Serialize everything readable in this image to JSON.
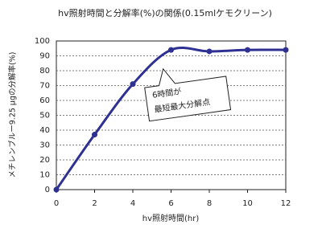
{
  "chart_data": {
    "type": "line",
    "title": "hv照射時間と分解率(%)の関係(0.15mlケモクリーン)",
    "x_label": "hv照射時間(hr)",
    "y_label": "メチレンブルー9.25 μgの分解率(%)",
    "annotation": [
      "6時間が",
      "最短最大分解点"
    ],
    "x": [
      0,
      2,
      4,
      6,
      8,
      10,
      12
    ],
    "series": [
      {
        "name": "分解率",
        "color": "#2e3192",
        "values": [
          0,
          37,
          71,
          94,
          93,
          94,
          94
        ]
      }
    ],
    "xlim": [
      0,
      12
    ],
    "xticks": [
      0,
      2,
      4,
      6,
      8,
      10,
      12
    ],
    "ylim": [
      0,
      100
    ],
    "yticks": [
      0,
      10,
      20,
      30,
      40,
      50,
      60,
      70,
      80,
      90,
      100
    ],
    "grid": true
  }
}
